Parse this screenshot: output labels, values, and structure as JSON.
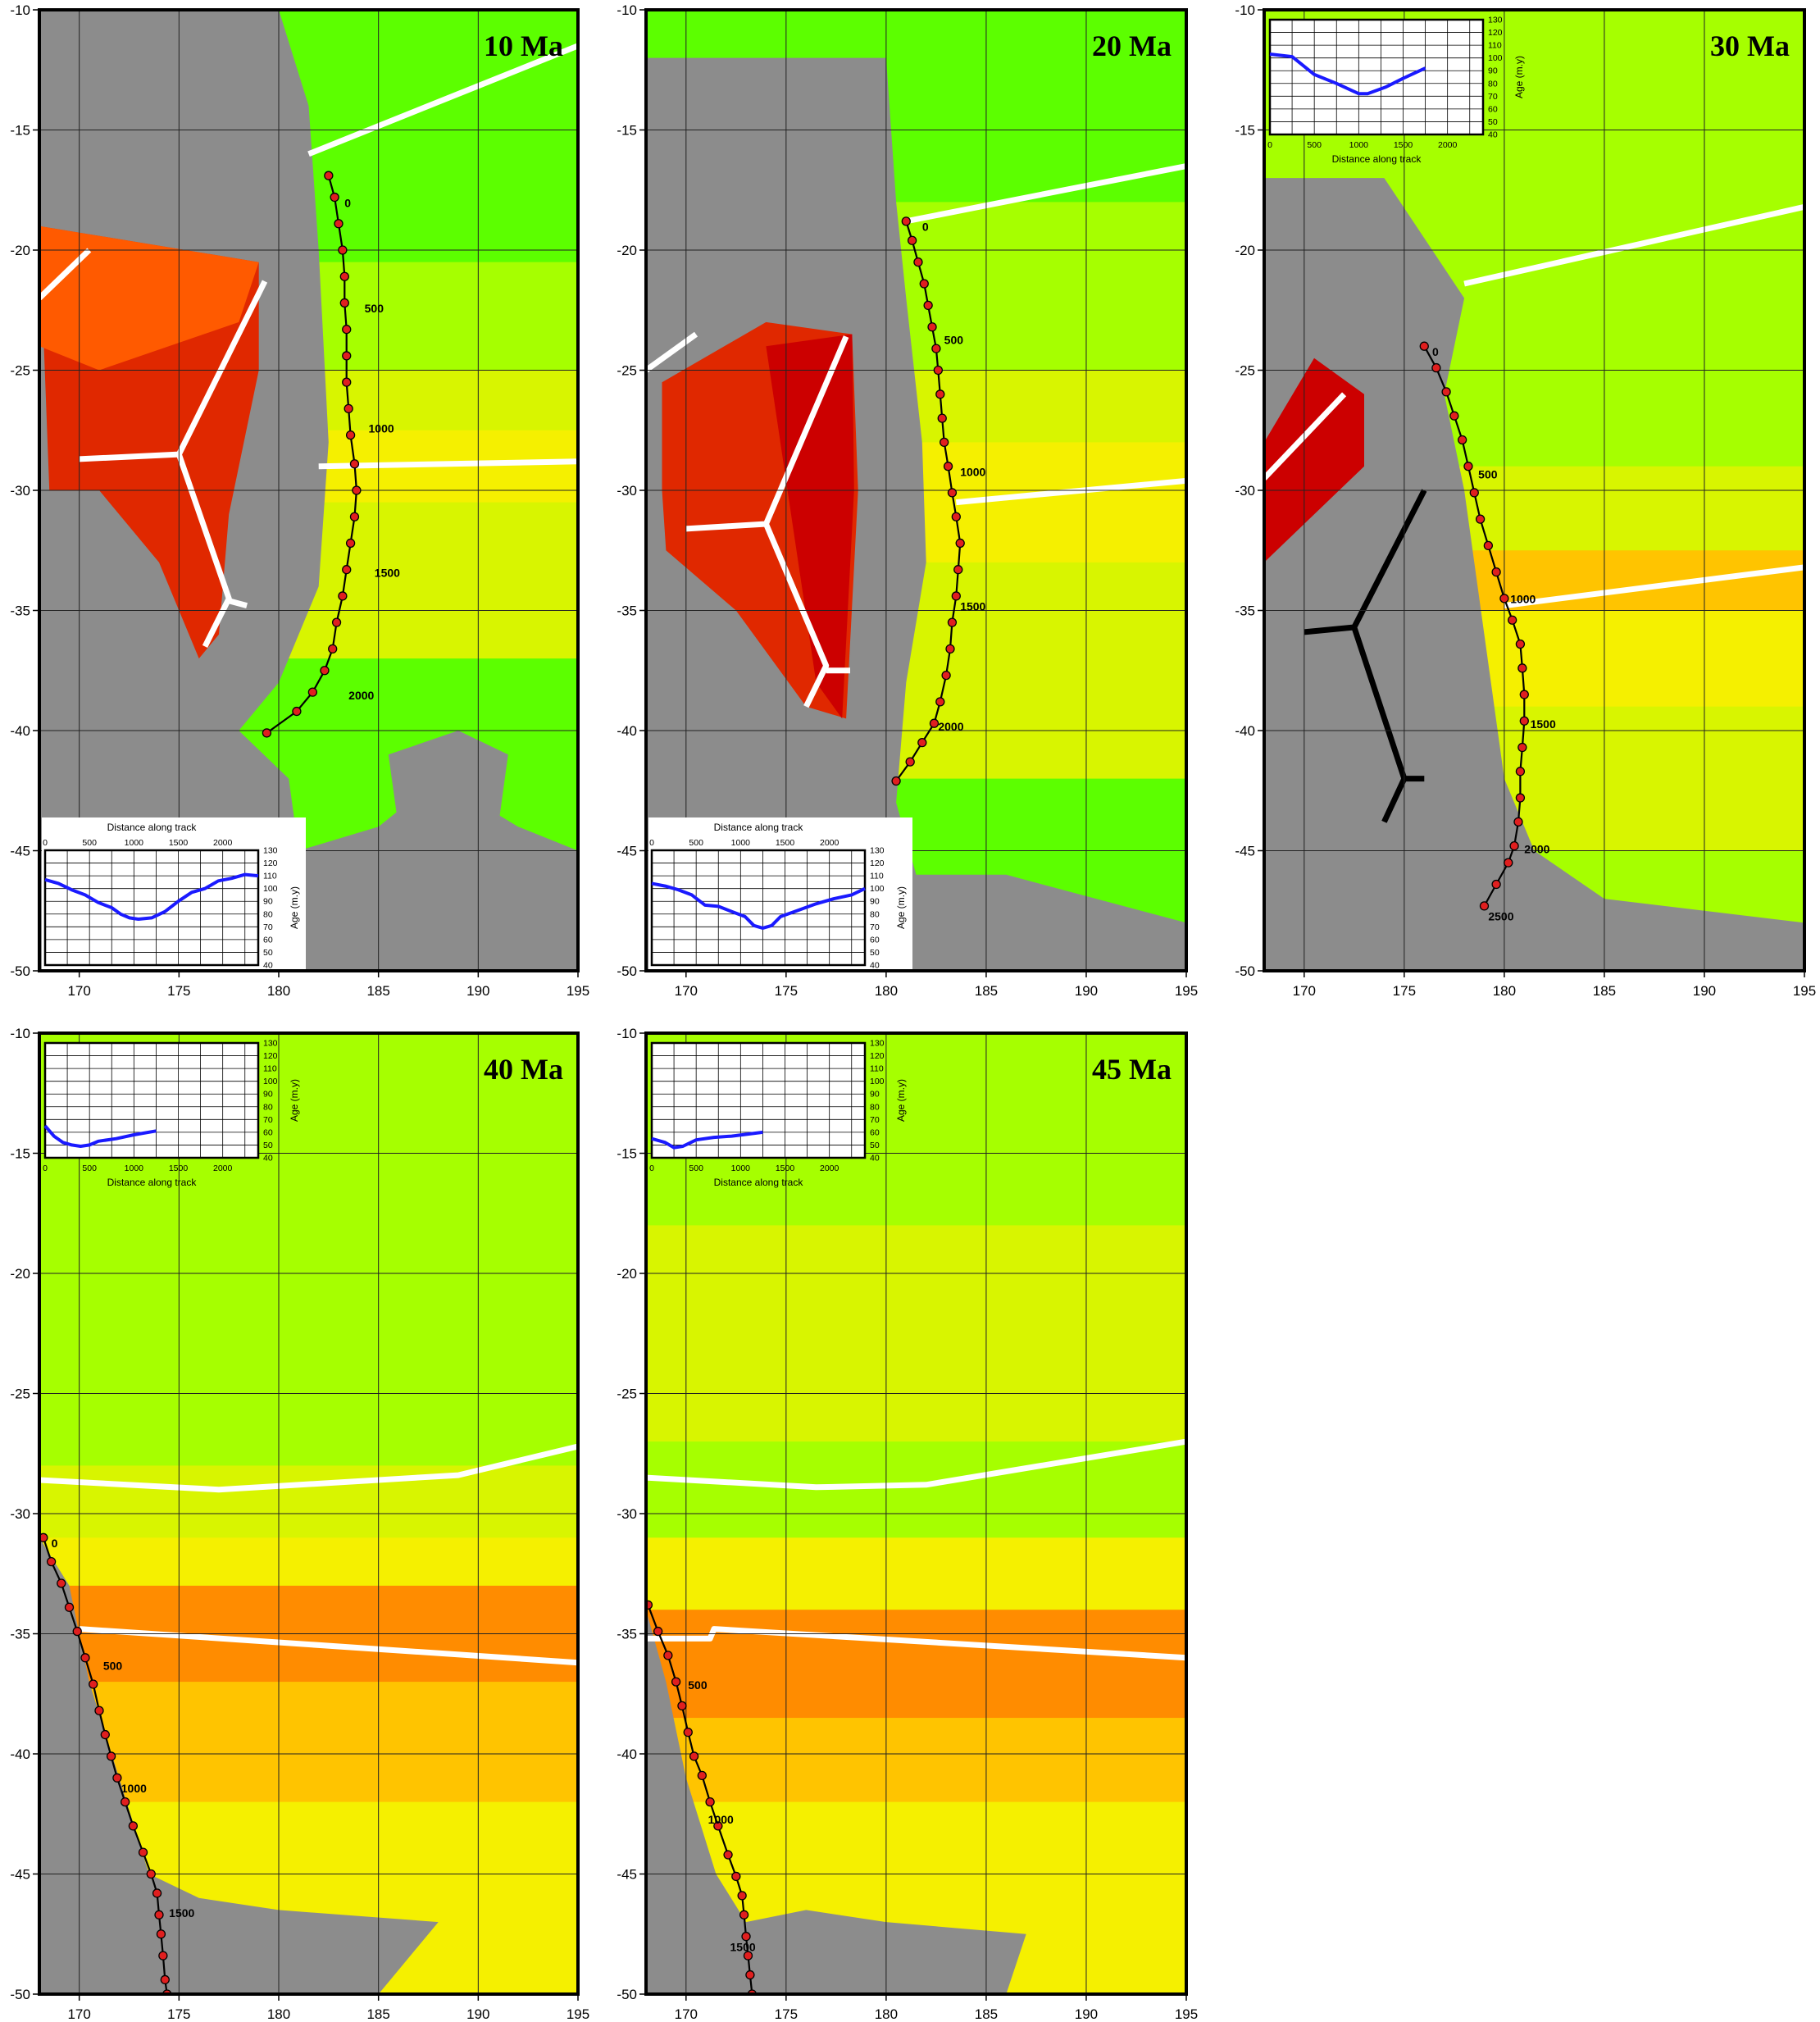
{
  "colors": {
    "land": "#8c8c8c",
    "land_outline": "#7a7a7a",
    "ridge": "#ffffff",
    "old_ridge": "#000000",
    "track": "#000000",
    "track_point": "#e01f1f",
    "age_curve": "#1a1aff",
    "age_green": "#5cff00",
    "age_lime": "#a6ff00",
    "age_yellowgreen": "#d8f500",
    "age_yellow": "#f5f000",
    "age_gold": "#ffc400",
    "age_orange": "#ff8c00",
    "age_redorange": "#ff5a00",
    "age_red": "#e02800",
    "age_darkred": "#cc0000"
  },
  "map_axes": {
    "lon_ticks": [
      170,
      175,
      180,
      185,
      190,
      195
    ],
    "lat_ticks": [
      -10,
      -15,
      -20,
      -25,
      -30,
      -35,
      -40,
      -45,
      -50
    ],
    "lon_range": [
      168,
      195
    ],
    "lat_range": [
      -50,
      -10
    ]
  },
  "inset_axes": {
    "xlabel": "Distance along track",
    "ylabel": "Age (m.y)",
    "x_ticks": [
      0,
      500,
      1000,
      1500,
      2000
    ],
    "y_ticks": [
      40,
      50,
      60,
      70,
      80,
      90,
      100,
      110,
      120,
      130
    ],
    "x_range": [
      0,
      2400
    ],
    "y_range": [
      40,
      130
    ]
  },
  "panels": [
    {
      "title": "10 Ma",
      "inset_position": "bottom-left",
      "track_labels": [
        {
          "text": "0",
          "lon": 183.3,
          "lat": -18.2
        },
        {
          "text": "500",
          "lon": 184.3,
          "lat": -22.6
        },
        {
          "text": "1000",
          "lon": 184.5,
          "lat": -27.6
        },
        {
          "text": "1500",
          "lon": 184.8,
          "lat": -33.6
        },
        {
          "text": "2000",
          "lon": 183.5,
          "lat": -38.7
        }
      ],
      "track": [
        [
          182.5,
          -16.9
        ],
        [
          182.8,
          -17.8
        ],
        [
          183.0,
          -18.9
        ],
        [
          183.2,
          -20.0
        ],
        [
          183.3,
          -21.1
        ],
        [
          183.3,
          -22.2
        ],
        [
          183.4,
          -23.3
        ],
        [
          183.4,
          -24.4
        ],
        [
          183.4,
          -25.5
        ],
        [
          183.5,
          -26.6
        ],
        [
          183.6,
          -27.7
        ],
        [
          183.8,
          -28.9
        ],
        [
          183.9,
          -30.0
        ],
        [
          183.8,
          -31.1
        ],
        [
          183.6,
          -32.2
        ],
        [
          183.4,
          -33.3
        ],
        [
          183.2,
          -34.4
        ],
        [
          182.9,
          -35.5
        ],
        [
          182.7,
          -36.6
        ],
        [
          182.3,
          -37.5
        ],
        [
          181.7,
          -38.4
        ],
        [
          180.9,
          -39.2
        ],
        [
          179.4,
          -40.1
        ]
      ],
      "age_curve": [
        [
          0,
          107
        ],
        [
          150,
          104
        ],
        [
          300,
          99
        ],
        [
          450,
          95
        ],
        [
          600,
          89
        ],
        [
          750,
          85
        ],
        [
          850,
          80
        ],
        [
          950,
          77
        ],
        [
          1050,
          76
        ],
        [
          1200,
          77
        ],
        [
          1350,
          82
        ],
        [
          1500,
          90
        ],
        [
          1650,
          97
        ],
        [
          1800,
          100
        ],
        [
          1950,
          106
        ],
        [
          2100,
          108
        ],
        [
          2250,
          111
        ],
        [
          2400,
          110
        ]
      ]
    },
    {
      "title": "20 Ma",
      "inset_position": "bottom-left",
      "track_labels": [
        {
          "text": "0",
          "lon": 181.8,
          "lat": -19.2
        },
        {
          "text": "500",
          "lon": 182.9,
          "lat": -23.9
        },
        {
          "text": "1000",
          "lon": 183.7,
          "lat": -29.4
        },
        {
          "text": "1500",
          "lon": 183.7,
          "lat": -35.0
        },
        {
          "text": "2000",
          "lon": 182.6,
          "lat": -40.0
        }
      ],
      "track": [
        [
          181.0,
          -18.8
        ],
        [
          181.3,
          -19.6
        ],
        [
          181.6,
          -20.5
        ],
        [
          181.9,
          -21.4
        ],
        [
          182.1,
          -22.3
        ],
        [
          182.3,
          -23.2
        ],
        [
          182.5,
          -24.1
        ],
        [
          182.6,
          -25.0
        ],
        [
          182.7,
          -26.0
        ],
        [
          182.8,
          -27.0
        ],
        [
          182.9,
          -28.0
        ],
        [
          183.1,
          -29.0
        ],
        [
          183.3,
          -30.1
        ],
        [
          183.5,
          -31.1
        ],
        [
          183.7,
          -32.2
        ],
        [
          183.6,
          -33.3
        ],
        [
          183.5,
          -34.4
        ],
        [
          183.3,
          -35.5
        ],
        [
          183.2,
          -36.6
        ],
        [
          183.0,
          -37.7
        ],
        [
          182.7,
          -38.8
        ],
        [
          182.4,
          -39.7
        ],
        [
          181.8,
          -40.5
        ],
        [
          181.2,
          -41.3
        ],
        [
          180.5,
          -42.1
        ]
      ],
      "age_curve": [
        [
          0,
          104
        ],
        [
          150,
          102
        ],
        [
          300,
          99
        ],
        [
          450,
          95
        ],
        [
          600,
          87
        ],
        [
          750,
          86
        ],
        [
          900,
          82
        ],
        [
          1050,
          78
        ],
        [
          1150,
          71
        ],
        [
          1250,
          69
        ],
        [
          1350,
          71
        ],
        [
          1450,
          78
        ],
        [
          1650,
          83
        ],
        [
          1850,
          88
        ],
        [
          2050,
          92
        ],
        [
          2250,
          95
        ],
        [
          2400,
          100
        ]
      ]
    },
    {
      "title": "30 Ma",
      "inset_position": "top-left",
      "track_labels": [
        {
          "text": "0",
          "lon": 176.4,
          "lat": -24.4
        },
        {
          "text": "500",
          "lon": 178.7,
          "lat": -29.5
        },
        {
          "text": "1000",
          "lon": 180.3,
          "lat": -34.7
        },
        {
          "text": "1500",
          "lon": 181.3,
          "lat": -39.9
        },
        {
          "text": "2000",
          "lon": 181.0,
          "lat": -45.1
        },
        {
          "text": "2500",
          "lon": 179.2,
          "lat": -47.9
        }
      ],
      "track": [
        [
          176.0,
          -24.0
        ],
        [
          176.6,
          -24.9
        ],
        [
          177.1,
          -25.9
        ],
        [
          177.5,
          -26.9
        ],
        [
          177.9,
          -27.9
        ],
        [
          178.2,
          -29.0
        ],
        [
          178.5,
          -30.1
        ],
        [
          178.8,
          -31.2
        ],
        [
          179.2,
          -32.3
        ],
        [
          179.6,
          -33.4
        ],
        [
          180.0,
          -34.5
        ],
        [
          180.4,
          -35.4
        ],
        [
          180.8,
          -36.4
        ],
        [
          180.9,
          -37.4
        ],
        [
          181.0,
          -38.5
        ],
        [
          181.0,
          -39.6
        ],
        [
          180.9,
          -40.7
        ],
        [
          180.8,
          -41.7
        ],
        [
          180.8,
          -42.8
        ],
        [
          180.7,
          -43.8
        ],
        [
          180.5,
          -44.8
        ],
        [
          180.2,
          -45.5
        ],
        [
          179.6,
          -46.4
        ],
        [
          179.0,
          -47.3
        ]
      ],
      "age_curve": [
        [
          0,
          103
        ],
        [
          250,
          101
        ],
        [
          500,
          87
        ],
        [
          750,
          80
        ],
        [
          1000,
          72
        ],
        [
          1100,
          72
        ],
        [
          1300,
          77
        ],
        [
          1500,
          84
        ],
        [
          1750,
          92
        ]
      ]
    },
    {
      "title": "40 Ma",
      "inset_position": "top-left",
      "track_labels": [
        {
          "text": "0",
          "lon": 168.6,
          "lat": -31.4
        },
        {
          "text": "500",
          "lon": 171.2,
          "lat": -36.5
        },
        {
          "text": "1000",
          "lon": 172.1,
          "lat": -41.6
        },
        {
          "text": "1500",
          "lon": 174.5,
          "lat": -46.8
        }
      ],
      "track": [
        [
          168.2,
          -31.0
        ],
        [
          168.6,
          -32.0
        ],
        [
          169.1,
          -32.9
        ],
        [
          169.5,
          -33.9
        ],
        [
          169.9,
          -34.9
        ],
        [
          170.3,
          -36.0
        ],
        [
          170.7,
          -37.1
        ],
        [
          171.0,
          -38.2
        ],
        [
          171.3,
          -39.2
        ],
        [
          171.6,
          -40.1
        ],
        [
          171.9,
          -41.0
        ],
        [
          172.3,
          -42.0
        ],
        [
          172.7,
          -43.0
        ],
        [
          173.2,
          -44.1
        ],
        [
          173.6,
          -45.0
        ],
        [
          173.9,
          -45.8
        ],
        [
          174.0,
          -46.7
        ],
        [
          174.1,
          -47.5
        ],
        [
          174.2,
          -48.4
        ],
        [
          174.3,
          -49.4
        ],
        [
          174.4,
          -50.0
        ]
      ],
      "age_curve": [
        [
          0,
          65
        ],
        [
          100,
          57
        ],
        [
          200,
          52
        ],
        [
          300,
          50
        ],
        [
          400,
          49
        ],
        [
          500,
          50
        ],
        [
          600,
          53
        ],
        [
          800,
          55
        ],
        [
          1000,
          58
        ],
        [
          1250,
          61
        ]
      ]
    },
    {
      "title": "45 Ma",
      "inset_position": "top-left",
      "track_labels": [
        {
          "text": "500",
          "lon": 170.1,
          "lat": -37.3
        },
        {
          "text": "1000",
          "lon": 171.1,
          "lat": -42.9
        },
        {
          "text": "1500",
          "lon": 172.2,
          "lat": -48.2
        }
      ],
      "track": [
        [
          168.1,
          -33.8
        ],
        [
          168.6,
          -34.9
        ],
        [
          169.1,
          -35.9
        ],
        [
          169.5,
          -37.0
        ],
        [
          169.8,
          -38.0
        ],
        [
          170.1,
          -39.1
        ],
        [
          170.4,
          -40.1
        ],
        [
          170.8,
          -40.9
        ],
        [
          171.2,
          -42.0
        ],
        [
          171.6,
          -43.0
        ],
        [
          172.1,
          -44.2
        ],
        [
          172.5,
          -45.1
        ],
        [
          172.8,
          -45.9
        ],
        [
          172.9,
          -46.7
        ],
        [
          173.0,
          -47.6
        ],
        [
          173.1,
          -48.4
        ],
        [
          173.2,
          -49.2
        ],
        [
          173.3,
          -50.0
        ]
      ],
      "age_curve": [
        [
          0,
          55
        ],
        [
          150,
          52
        ],
        [
          250,
          48
        ],
        [
          350,
          49
        ],
        [
          500,
          54
        ],
        [
          700,
          56
        ],
        [
          900,
          57
        ],
        [
          1250,
          60
        ]
      ]
    }
  ]
}
